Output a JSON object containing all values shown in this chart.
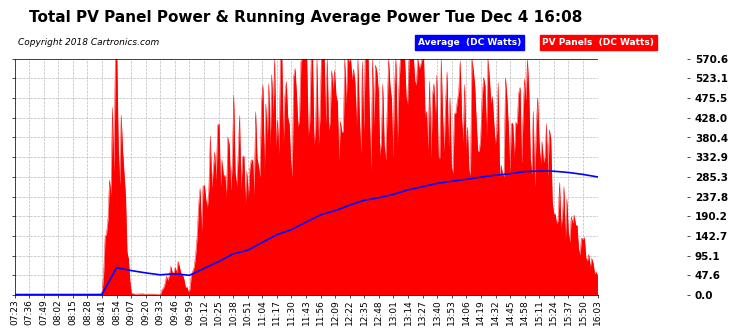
{
  "title": "Total PV Panel Power & Running Average Power Tue Dec 4 16:08",
  "copyright": "Copyright 2018 Cartronics.com",
  "legend_avg_label": "Average  (DC Watts)",
  "legend_pv_label": "PV Panels  (DC Watts)",
  "ylabel_right_ticks": [
    0.0,
    47.6,
    95.1,
    142.7,
    190.2,
    237.8,
    285.3,
    332.9,
    380.4,
    428.0,
    475.5,
    523.1,
    570.6
  ],
  "x_tick_labels": [
    "07:23",
    "07:36",
    "07:49",
    "08:02",
    "08:15",
    "08:28",
    "08:41",
    "08:54",
    "09:07",
    "09:20",
    "09:33",
    "09:46",
    "09:59",
    "10:12",
    "10:25",
    "10:38",
    "10:51",
    "11:04",
    "11:17",
    "11:30",
    "11:43",
    "11:56",
    "12:09",
    "12:22",
    "12:35",
    "12:48",
    "13:01",
    "13:14",
    "13:27",
    "13:40",
    "13:53",
    "14:06",
    "14:19",
    "14:32",
    "14:45",
    "14:58",
    "15:11",
    "15:24",
    "15:37",
    "15:50",
    "16:03"
  ],
  "ymax": 570.6,
  "bg_color": "#ffffff",
  "pv_color": "#ff0000",
  "avg_color": "#0000ff",
  "grid_color": "#bbbbbb",
  "title_fontsize": 11,
  "axis_label_fontsize": 6.5,
  "pv_data": [
    1,
    1,
    1,
    1,
    1,
    1,
    2,
    520,
    3,
    2,
    2,
    80,
    2,
    280,
    310,
    380,
    250,
    450,
    480,
    390,
    540,
    560,
    430,
    520,
    510,
    390,
    460,
    540,
    480,
    500,
    430,
    420,
    460,
    440,
    410,
    480,
    350,
    280,
    180,
    110,
    40
  ],
  "n_interp": 400
}
